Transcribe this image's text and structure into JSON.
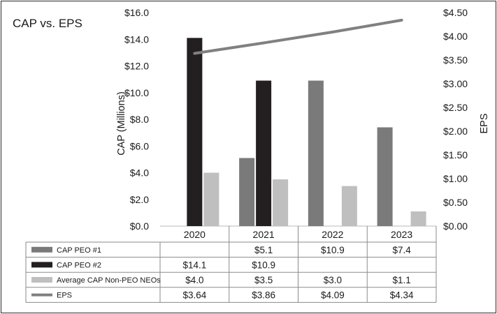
{
  "chart_data": {
    "type": "bar",
    "title": "CAP vs. EPS",
    "categories": [
      "2020",
      "2021",
      "2022",
      "2023"
    ],
    "ylabel": "CAP (Millions)",
    "y2label": "EPS",
    "ylim": [
      0,
      16
    ],
    "y2lim": [
      0,
      4.5
    ],
    "yticks": [
      "$0.0",
      "$2.0",
      "$4.0",
      "$6.0",
      "$8.0",
      "$10.0",
      "$12.0",
      "$14.0",
      "$16.0"
    ],
    "y2ticks": [
      "$0.00",
      "$0.50",
      "$1.00",
      "$1.50",
      "$2.00",
      "$2.50",
      "$3.00",
      "$3.50",
      "$4.00",
      "$4.50"
    ],
    "series": [
      {
        "name": "CAP PEO #1",
        "kind": "bar",
        "axis": "left",
        "color": "#7a7a7a",
        "values": [
          null,
          5.1,
          10.9,
          7.4
        ],
        "labels": [
          "",
          "$5.1",
          "$10.9",
          "$7.4"
        ]
      },
      {
        "name": "CAP PEO #2",
        "kind": "bar",
        "axis": "left",
        "color": "#231f20",
        "values": [
          14.1,
          10.9,
          null,
          null
        ],
        "labels": [
          "$14.1",
          "$10.9",
          "",
          ""
        ]
      },
      {
        "name": "Average CAP Non-PEO NEOs",
        "kind": "bar",
        "axis": "left",
        "color": "#c0bfc0",
        "values": [
          4.0,
          3.5,
          3.0,
          1.1
        ],
        "labels": [
          "$4.0",
          "$3.5",
          "$3.0",
          "$1.1"
        ]
      },
      {
        "name": "EPS",
        "kind": "line",
        "axis": "right",
        "color": "#808080",
        "values": [
          3.64,
          3.86,
          4.09,
          4.34
        ],
        "labels": [
          "$3.64",
          "$3.86",
          "$4.09",
          "$4.34"
        ]
      }
    ],
    "legend": "data table below chart"
  }
}
